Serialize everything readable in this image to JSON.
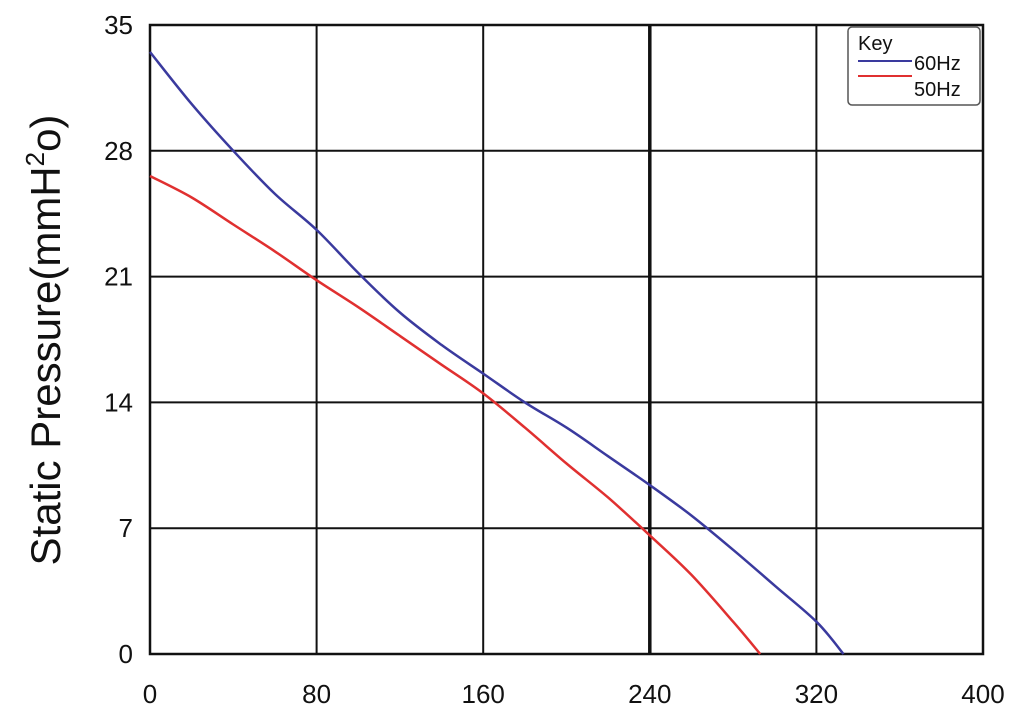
{
  "chart_data": {
    "type": "line",
    "title": "",
    "xlabel": "",
    "ylabel": "Static Pressure(mmH",
    "ylabel_superscript": "2",
    "ylabel_suffix": "o)",
    "xlim": [
      0,
      400
    ],
    "ylim": [
      0,
      35
    ],
    "x_ticks": [
      "0",
      "80",
      "160",
      "240",
      "320",
      "400"
    ],
    "y_ticks": [
      "0",
      "7",
      "14",
      "21",
      "28",
      "35"
    ],
    "grid": true,
    "legend": {
      "title": "Key",
      "placement": "top-right"
    },
    "series": [
      {
        "name": "60Hz",
        "color": "#3a3a9e",
        "points": [
          [
            0,
            33.5
          ],
          [
            20,
            30.6
          ],
          [
            40,
            28.0
          ],
          [
            60,
            25.6
          ],
          [
            80,
            23.6
          ],
          [
            100,
            21.2
          ],
          [
            120,
            19.0
          ],
          [
            140,
            17.2
          ],
          [
            160,
            15.6
          ],
          [
            180,
            14.0
          ],
          [
            200,
            12.6
          ],
          [
            220,
            11.0
          ],
          [
            240,
            9.4
          ],
          [
            260,
            7.7
          ],
          [
            280,
            5.8
          ],
          [
            300,
            3.8
          ],
          [
            320,
            1.8
          ],
          [
            333,
            0
          ]
        ]
      },
      {
        "name": "50Hz",
        "color": "#e03030",
        "points": [
          [
            0,
            26.6
          ],
          [
            20,
            25.4
          ],
          [
            40,
            23.9
          ],
          [
            60,
            22.4
          ],
          [
            80,
            20.8
          ],
          [
            100,
            19.3
          ],
          [
            120,
            17.7
          ],
          [
            140,
            16.1
          ],
          [
            160,
            14.5
          ],
          [
            180,
            12.6
          ],
          [
            200,
            10.6
          ],
          [
            220,
            8.7
          ],
          [
            240,
            6.6
          ],
          [
            260,
            4.4
          ],
          [
            280,
            1.8
          ],
          [
            293,
            0
          ]
        ]
      }
    ]
  }
}
